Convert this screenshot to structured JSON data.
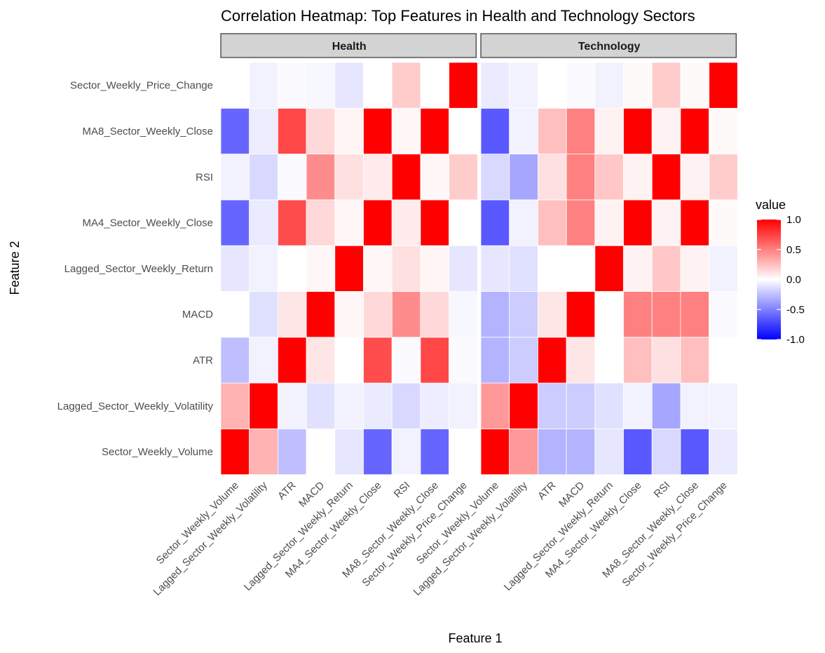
{
  "chart_data": {
    "type": "heatmap",
    "title": "Correlation Heatmap: Top Features in Health and Technology Sectors",
    "xlabel": "Feature 1",
    "ylabel": "Feature 2",
    "features": [
      "Sector_Weekly_Volume",
      "Lagged_Sector_Weekly_Volatility",
      "ATR",
      "MACD",
      "Lagged_Sector_Weekly_Return",
      "MA4_Sector_Weekly_Close",
      "RSI",
      "MA8_Sector_Weekly_Close",
      "Sector_Weekly_Price_Change"
    ],
    "legend": {
      "title": "value",
      "ticks": [
        1.0,
        0.5,
        0.0,
        -0.5,
        -1.0
      ],
      "tick_labels": [
        "1.0",
        "0.5",
        "0.0",
        "-0.5",
        "-1.0"
      ],
      "range": [
        -1.0,
        1.0
      ],
      "low_color": "#0000FF",
      "mid_color": "#FFFFFF",
      "high_color": "#FF0000",
      "placement": "right"
    },
    "panels": [
      {
        "label": "Health",
        "matrix": [
          [
            1.0,
            0.3,
            -0.25,
            0.0,
            -0.1,
            -0.6,
            -0.05,
            -0.6,
            0.0
          ],
          [
            0.3,
            1.0,
            -0.05,
            -0.12,
            -0.05,
            -0.08,
            -0.15,
            -0.07,
            -0.05
          ],
          [
            -0.25,
            -0.05,
            1.0,
            0.1,
            0.0,
            0.7,
            -0.02,
            0.72,
            -0.02
          ],
          [
            0.0,
            -0.12,
            0.1,
            1.0,
            0.03,
            0.15,
            0.45,
            0.15,
            -0.03
          ],
          [
            -0.1,
            -0.05,
            0.0,
            0.03,
            1.0,
            0.03,
            0.12,
            0.04,
            -0.1
          ],
          [
            -0.6,
            -0.08,
            0.7,
            0.15,
            0.03,
            1.0,
            0.08,
            1.0,
            0.0
          ],
          [
            -0.05,
            -0.15,
            -0.02,
            0.45,
            0.12,
            0.08,
            1.0,
            0.03,
            0.2
          ],
          [
            -0.6,
            -0.07,
            0.72,
            0.15,
            0.04,
            1.0,
            0.03,
            1.0,
            0.0
          ],
          [
            0.0,
            -0.05,
            -0.02,
            -0.03,
            -0.1,
            0.0,
            0.2,
            0.0,
            1.0
          ]
        ]
      },
      {
        "label": "Technology",
        "matrix": [
          [
            1.0,
            0.4,
            -0.3,
            -0.3,
            -0.1,
            -0.65,
            -0.15,
            -0.65,
            -0.08
          ],
          [
            0.4,
            1.0,
            -0.2,
            -0.2,
            -0.12,
            -0.05,
            -0.35,
            -0.05,
            -0.05
          ],
          [
            -0.3,
            -0.2,
            1.0,
            0.1,
            0.0,
            0.25,
            0.12,
            0.25,
            0.0
          ],
          [
            -0.3,
            -0.2,
            0.1,
            1.0,
            0.0,
            0.5,
            0.5,
            0.5,
            -0.02
          ],
          [
            -0.1,
            -0.12,
            0.0,
            0.0,
            1.0,
            0.05,
            0.22,
            0.05,
            -0.05
          ],
          [
            -0.65,
            -0.05,
            0.25,
            0.5,
            0.05,
            1.0,
            0.05,
            1.0,
            0.02
          ],
          [
            -0.15,
            -0.35,
            0.12,
            0.5,
            0.22,
            0.05,
            1.0,
            0.05,
            0.2
          ],
          [
            -0.65,
            -0.05,
            0.25,
            0.5,
            0.05,
            1.0,
            0.05,
            1.0,
            0.02
          ],
          [
            -0.08,
            -0.05,
            0.0,
            -0.02,
            -0.05,
            0.02,
            0.2,
            0.02,
            1.0
          ]
        ]
      }
    ]
  }
}
